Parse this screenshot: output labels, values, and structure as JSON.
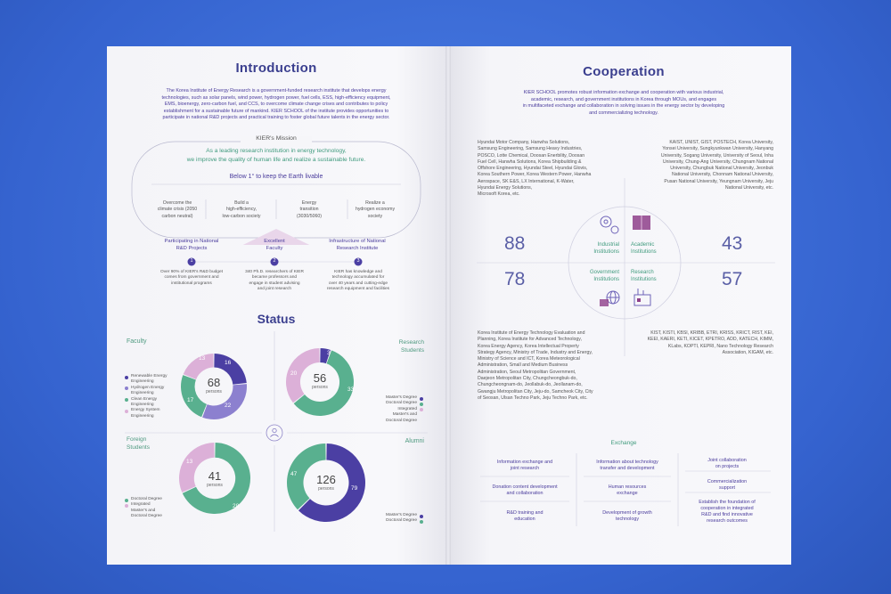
{
  "left": {
    "intro_title": "Introduction",
    "intro_text": [
      "The Korea Institute of Energy Research is a government-funded research institute that develops energy",
      "technologies, such as solar panels, wind power, hydrogen power, fuel cells, ESS, high-efficiency equipment,",
      "EMS, bioenergy, zero-carbon fuel, and CCS, to overcome climate change crises and contributes to policy",
      "establishment for a sustainable future of mankind. KIER SCHOOL of the institute provides opportunities to",
      "participate in national R&D projects and practical training to foster global future talents in the energy sector."
    ],
    "mission": {
      "title": "KIER's Mission",
      "line1": "As a leading research institution in energy technology,",
      "line2": "we improve the quality of human life and realize a sustainable future.",
      "below": "Below 1° to keep the Earth livable",
      "goals": [
        [
          "Overcome the",
          "climate crisis (2050",
          "carbon neutral)"
        ],
        [
          "Build a",
          "high-efficiency,",
          "low-carbon society"
        ],
        [
          "Energy",
          "transition",
          "(3030/5060)"
        ],
        [
          "Realize a",
          "hydrogen economy",
          "society"
        ]
      ]
    },
    "pillars": [
      {
        "title": [
          "Participating in National",
          "R&D Projects"
        ],
        "num": "1",
        "desc": [
          "Over 90% of KIER's R&D budget",
          "comes from government and",
          "institutional programs"
        ]
      },
      {
        "title": [
          "Excellent",
          "Faculty"
        ],
        "num": "2",
        "desc": [
          "340 Ph.D. researchers of KIER",
          "became professors and",
          "engage in student advising",
          "and joint research"
        ]
      },
      {
        "title": [
          "Infrastructure of National",
          "Research Institute"
        ],
        "num": "3",
        "desc": [
          "KIER has knowledge and",
          "technology accumulated for",
          "over 40 years and cutting-edge",
          "research equipment and facilities"
        ]
      }
    ],
    "status_title": "Status",
    "faculty": {
      "title": "Faculty",
      "total": "68",
      "unit": "persons",
      "legend": [
        [
          "Renewable Energy",
          "Engineering"
        ],
        [
          "Hydrogen Energy",
          "Engineering"
        ],
        [
          "Clean Energy",
          "Engineering"
        ],
        [
          "Energy System",
          "Engineering"
        ]
      ]
    },
    "research": {
      "title": [
        "Research",
        "Students"
      ],
      "total": "56",
      "unit": "persons",
      "legend": [
        [
          "Master's Degree"
        ],
        [
          "Doctoral Degree"
        ],
        [
          "Integrated",
          "Master's and",
          "Doctoral Degree"
        ]
      ]
    },
    "foreign": {
      "title": [
        "Foreign",
        "Students"
      ],
      "total": "41",
      "unit": "persons",
      "legend": [
        [
          "Doctoral Degree"
        ],
        [
          "Integrated",
          "Master's and",
          "Doctoral Degree"
        ]
      ]
    },
    "alumni": {
      "title": "Alumni",
      "total": "126",
      "unit": "persons",
      "legend": [
        [
          "Master's Degree"
        ],
        [
          "Doctoral Degree"
        ]
      ]
    }
  },
  "chart_data": [
    {
      "type": "pie",
      "title": "Faculty",
      "categories": [
        "Renewable Energy Engineering",
        "Hydrogen Energy Engineering",
        "Clean Energy Engineering",
        "Energy System Engineering"
      ],
      "values": [
        16,
        22,
        17,
        13
      ],
      "total": 68
    },
    {
      "type": "pie",
      "title": "Research Students",
      "categories": [
        "Master's Degree",
        "Doctoral Degree",
        "Integrated Master's and Doctoral Degree"
      ],
      "values": [
        3,
        33,
        20
      ],
      "total": 56
    },
    {
      "type": "pie",
      "title": "Foreign Students",
      "categories": [
        "Doctoral Degree",
        "Integrated Master's and Doctoral Degree"
      ],
      "values": [
        28,
        13
      ],
      "total": 41
    },
    {
      "type": "pie",
      "title": "Alumni",
      "categories": [
        "Master's Degree",
        "Doctoral Degree"
      ],
      "values": [
        79,
        47
      ],
      "total": 126
    }
  ],
  "right": {
    "coop_title": "Cooperation",
    "coop_text": [
      "KIER SCHOOL promotes robust information exchange and cooperation with various industrial,",
      "academic, research, and government institutions in Korea through MOUs, and engages",
      "in multifaceted exchange and collaboration in solving issues in the energy sector by developing",
      "and commercializing technology."
    ],
    "industrial_list": [
      "Hyundai Motor Company, Hanwha Solutions,",
      "Samsung Engineering, Samsung Heavy Industries,",
      "POSCO, Lotte Chemical, Doosan Enerbility, Doosan",
      "Fuel Cell, Hanwha Solutions, Korea Shipbuilding &",
      "Offshore Engineering, Hyundai Steel, Hyundai Glovis,",
      "Korea Southern Power, Korea Western Power, Hanwha",
      "Aerospace, SK E&S, LX International, K-Water,",
      "Hyundai Energy Solutions,",
      "Microsoft Korea, etc."
    ],
    "academic_list": [
      "KAIST, UNIST, GIST, POSTECH, Korea University,",
      "Yonsei University, Sungkyunkwan University, Hanyang",
      "University, Sogang University, University of Seoul, Inha",
      "University, Chung-Ang University, Chungnam National",
      "University, Chungbuk National University, Jeonbuk",
      "National University, Chonnam National University,",
      "Pusan National University, Yeungnam University, Jeju",
      "National University, etc."
    ],
    "government_list": [
      "Korea Institute of Energy Technology Evaluation and",
      "Planning, Korea Institute for Advanced Technology,",
      "Korea Energy Agency, Korea Intellectual Property",
      "Strategy Agency, Ministry of Trade, Industry and Energy,",
      "Ministry of Science and ICT, Korea Meteorological",
      "Administration, Small and Medium Business",
      "Administration, Seoul Metropolitan Government,",
      "Daejeon Metropolitan City, Chungcheongbuk-do,",
      "Chungcheongnam-do, Jeollabuk-do, Jeollanam-do,",
      "Gwangju Metropolitan City, Jeju-do, Samcheok City, City",
      "of Seosan, Ulsan Techno Park, Jeju Techno Park, etc."
    ],
    "research_list": [
      "KIST, KISTI, KBSI, KRIBB, ETRI, KRISS, KRICT, RIST, KEI,",
      "KEEI, KAERI, KETI, KICET, KPETRO, ADD, KATECH, KIMM,",
      "KLabs, KOPTI, KEPRI, Nano Technology Research",
      "Association, KIGAM, etc."
    ],
    "quadrants": [
      {
        "count": "88",
        "label": [
          "Industrial",
          "Institutions"
        ],
        "icon": "gears-icon"
      },
      {
        "count": "43",
        "label": [
          "Academic",
          "Institutions"
        ],
        "icon": "books-icon"
      },
      {
        "count": "78",
        "label": [
          "Government",
          "Institutions"
        ],
        "icon": "globe-computer-icon"
      },
      {
        "count": "57",
        "label": [
          "Research",
          "Institutions"
        ],
        "icon": "lab-building-icon"
      }
    ],
    "exchange_title": "Exchange",
    "exchange": [
      [
        [
          "Information exchange and",
          "joint research"
        ],
        [
          "Information about technology",
          "transfer and development"
        ],
        [
          "Joint collaboration",
          "on projects"
        ]
      ],
      [
        [
          "Donation content development",
          "and collaboration"
        ],
        [
          "Human resources",
          "exchange"
        ],
        [
          "Commercialization",
          "support"
        ]
      ],
      [
        [
          "R&D training and",
          "education"
        ],
        [
          "Development of growth",
          "technology"
        ],
        [
          "Establish the foundation of",
          "cooperation in integrated",
          "R&D and find innovative",
          "research outcomes"
        ]
      ]
    ]
  },
  "colors": {
    "navy": "#3b3f8f",
    "purple": "#4b3fa3",
    "green": "#59b08f",
    "pink": "#dcb0d8",
    "lavender": "#8c80cf"
  }
}
